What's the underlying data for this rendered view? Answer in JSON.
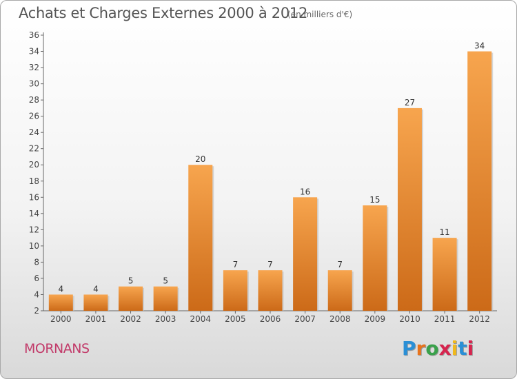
{
  "title": "Achats et Charges Externes 2000 à 2012",
  "unit": "(en milliers d'€)",
  "commune": "MORNANS",
  "logo": {
    "letters": [
      "P",
      "r",
      "o",
      "x",
      "i",
      "t",
      "i"
    ],
    "colors": [
      "#2a8fd6",
      "#e8731c",
      "#3aa14b",
      "#d6244e",
      "#f0b81c",
      "#2a8fd6",
      "#d6244e"
    ]
  },
  "colors": {
    "bar_light": "#f7a54e",
    "bar_dark": "#cc6a18",
    "title": "#555555",
    "commune": "#c23b6a"
  },
  "chart_data": {
    "type": "bar",
    "categories": [
      "2000",
      "2001",
      "2002",
      "2003",
      "2004",
      "2005",
      "2006",
      "2007",
      "2008",
      "2009",
      "2010",
      "2011",
      "2012"
    ],
    "values": [
      4,
      4,
      5,
      5,
      20,
      7,
      7,
      16,
      7,
      15,
      27,
      11,
      34
    ],
    "data_labels": [
      "4",
      "4",
      "5",
      "5",
      "20",
      "7",
      "7",
      "16",
      "7",
      "15",
      "27",
      "11",
      "34"
    ],
    "yticks": [
      2,
      4,
      6,
      8,
      10,
      12,
      14,
      16,
      18,
      20,
      22,
      24,
      26,
      28,
      30,
      32,
      34,
      36
    ],
    "ylim": [
      2,
      36
    ],
    "grid": false,
    "title": "Achats et Charges Externes 2000 à 2012",
    "xlabel": "",
    "ylabel": ""
  }
}
